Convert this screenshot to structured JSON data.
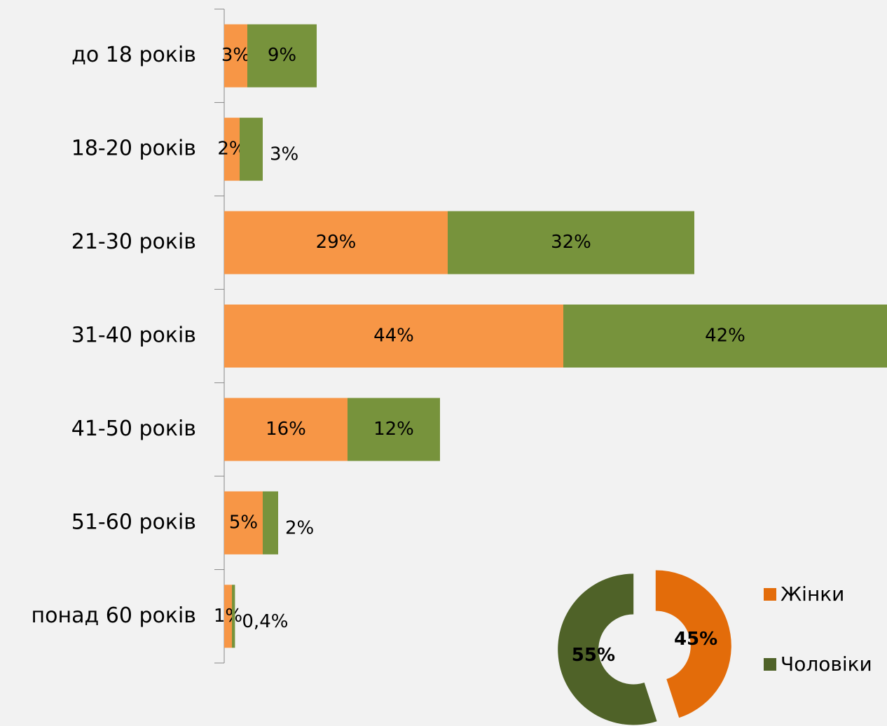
{
  "chart_data": [
    {
      "type": "stacked-bar-horizontal",
      "categories": [
        "до 18 років",
        "18-20 років",
        "21-30 років",
        "31-40 років",
        "41-50 років",
        "51-60 років",
        "понад 60 років"
      ],
      "series": [
        {
          "color": "#f79646",
          "values": [
            3,
            2,
            29,
            44,
            16,
            5,
            1
          ],
          "value_labels": [
            "3%",
            "2%",
            "29%",
            "44%",
            "16%",
            "5%",
            "1%"
          ]
        },
        {
          "color": "#77933c",
          "values": [
            9,
            3,
            32,
            42,
            12,
            2,
            0.4
          ],
          "value_labels": [
            "9%",
            "3%",
            "32%",
            "42%",
            "12%",
            "2%",
            "0,4%"
          ]
        }
      ],
      "xlim": [
        0,
        86
      ]
    },
    {
      "type": "donut",
      "categories": [
        "Жінки",
        "Чоловіки"
      ],
      "values": [
        45,
        55
      ],
      "value_labels": [
        "45%",
        "55%"
      ],
      "colors": [
        "#e36c0a",
        "#4f6228"
      ]
    }
  ]
}
